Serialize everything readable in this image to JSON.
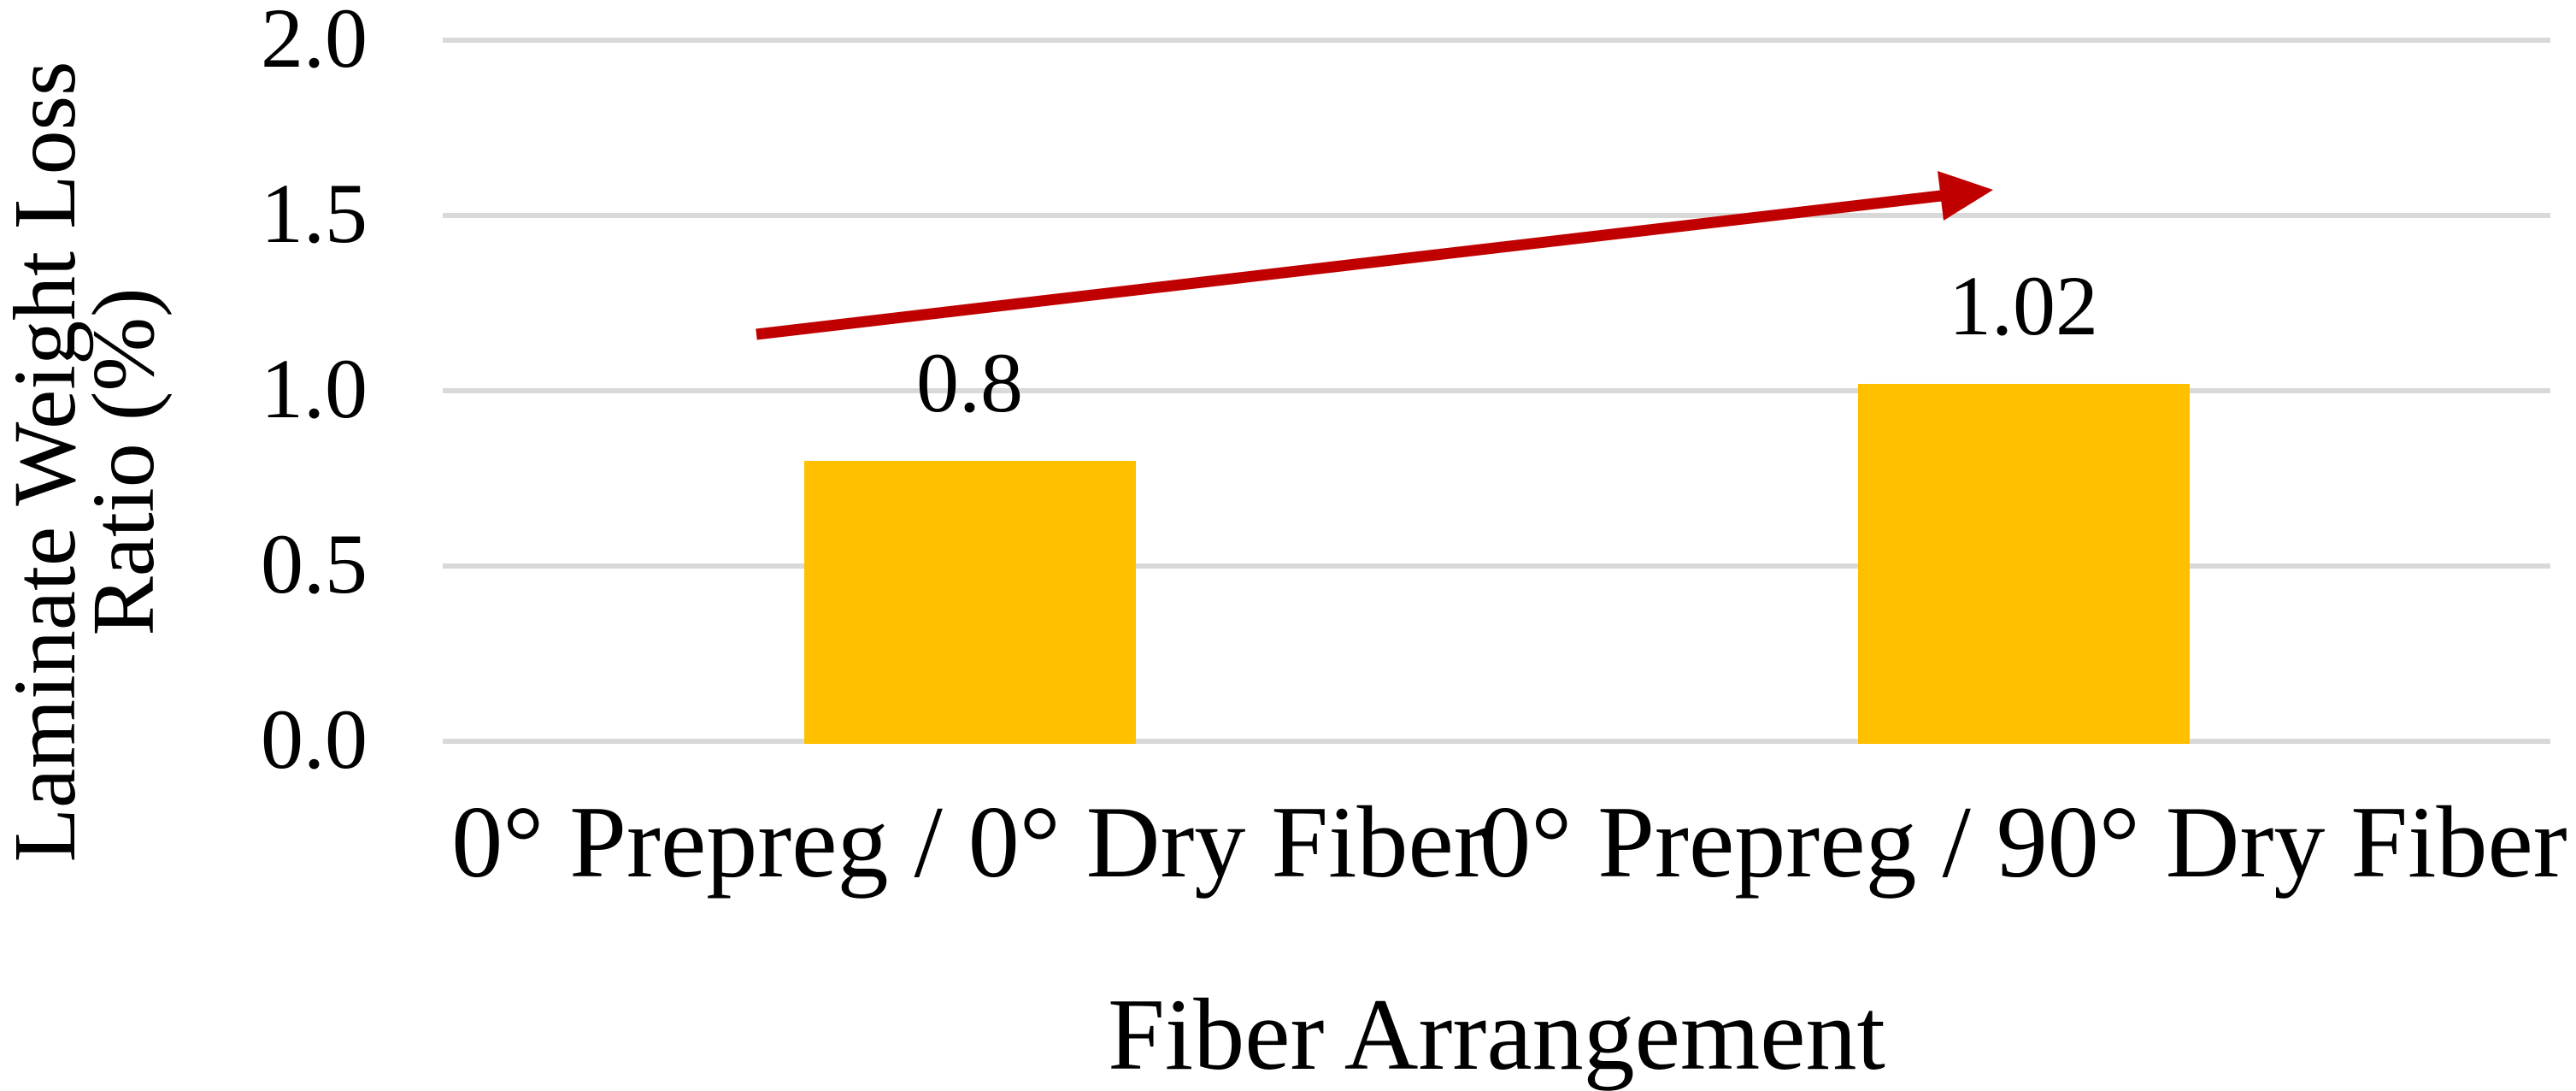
{
  "chart_data": {
    "type": "bar",
    "categories": [
      "0° Prepreg / 0° Dry Fiber",
      "0° Prepreg / 90° Dry Fiber"
    ],
    "values": [
      0.8,
      1.02
    ],
    "value_labels": [
      "0.8",
      "1.02"
    ],
    "series_name": "Laminate Weight Loss Ratio",
    "xlabel": "Fiber Arrangement",
    "ylabel": "Laminate Weight Loss Ratio (%)",
    "ylabel_lines": [
      "Laminate Weight Loss",
      "Ratio (%)"
    ],
    "ylim": [
      0.0,
      2.0
    ],
    "ytick_step": 0.5,
    "ytick_labels": [
      "0.0",
      "0.5",
      "1.0",
      "1.5",
      "2.0"
    ],
    "grid": true,
    "legend": "none",
    "bar_color": "#FFC000",
    "gridline_color": "#D9D9D9",
    "text_color": "#000000",
    "annotation": {
      "type": "trend-arrow",
      "direction": "up-right",
      "color": "#C00000"
    }
  }
}
